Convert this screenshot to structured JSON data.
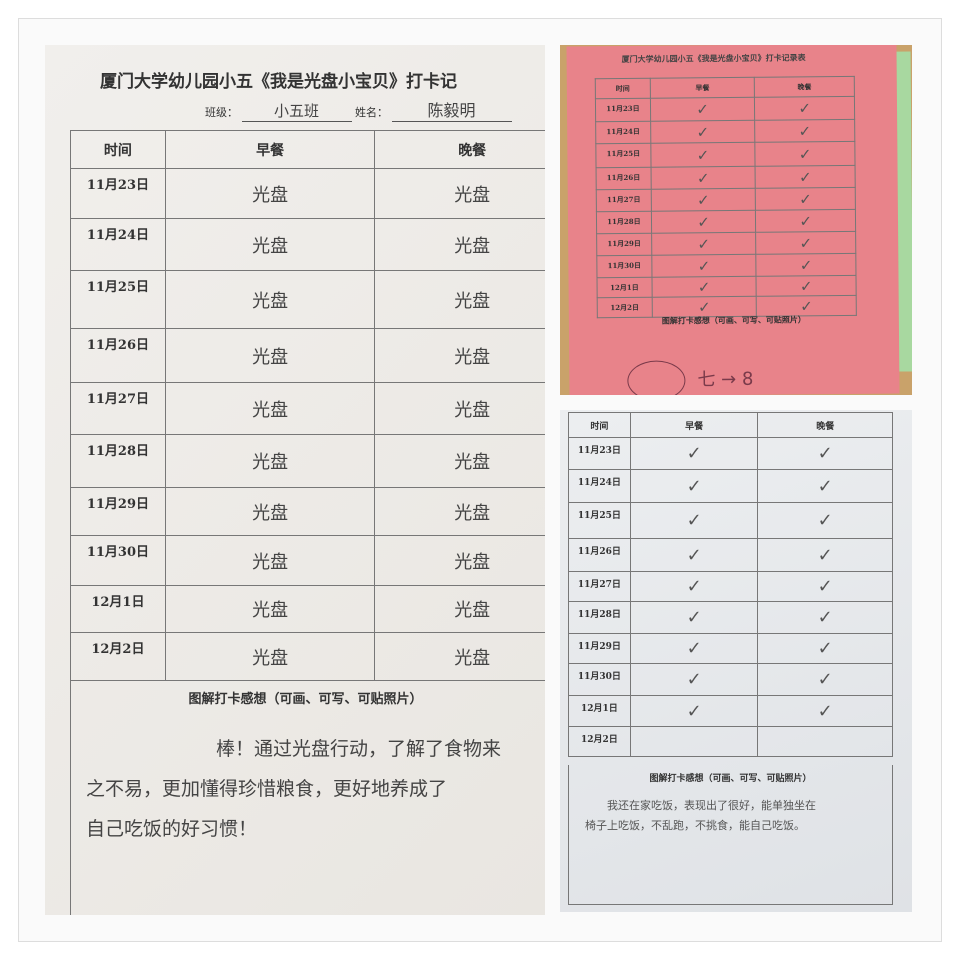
{
  "form": {
    "title": "厦门大学幼儿园小五《我是光盘小宝贝》打卡记录表",
    "title_cropped": "厦门大学幼儿园小五《我是光盘小宝贝》打卡记",
    "class_label": "班级：",
    "name_label": "姓名：",
    "col_time": "时间",
    "col_breakfast": "早餐",
    "col_dinner": "晚餐",
    "feedback_label": "图解打卡感想（可画、可写、可贴照片）"
  },
  "sheet1": {
    "class_value": "小五班",
    "name_value": "陈毅明",
    "rows": [
      {
        "date": "11月23日",
        "breakfast": "光盘",
        "dinner": "光盘"
      },
      {
        "date": "11月24日",
        "breakfast": "光盘",
        "dinner": "光盘"
      },
      {
        "date": "11月25日",
        "breakfast": "光盘",
        "dinner": "光盘"
      },
      {
        "date": "11月26日",
        "breakfast": "光盘",
        "dinner": "光盘"
      },
      {
        "date": "11月27日",
        "breakfast": "光盘",
        "dinner": "光盘"
      },
      {
        "date": "11月28日",
        "breakfast": "光盘",
        "dinner": "光盘"
      },
      {
        "date": "11月29日",
        "breakfast": "光盘",
        "dinner": "光盘"
      },
      {
        "date": "11月30日",
        "breakfast": "光盘",
        "dinner": "光盘"
      },
      {
        "date": "12月1日",
        "breakfast": "光盘",
        "dinner": "光盘"
      },
      {
        "date": "12月2日",
        "breakfast": "光盘",
        "dinner": "光盘"
      }
    ],
    "feedback": [
      "棒！通过光盘行动，了解了食物来",
      "之不易，更加懂得珍惜粮食，更好地养成了",
      "自己吃饭的好习惯！"
    ]
  },
  "sheet2": {
    "rows": [
      {
        "date": "11月23日",
        "breakfast": "✓",
        "dinner": "✓"
      },
      {
        "date": "11月24日",
        "breakfast": "✓",
        "dinner": "✓"
      },
      {
        "date": "11月25日",
        "breakfast": "✓",
        "dinner": "✓"
      },
      {
        "date": "11月26日",
        "breakfast": "✓",
        "dinner": "✓"
      },
      {
        "date": "11月27日",
        "breakfast": "✓",
        "dinner": "✓"
      },
      {
        "date": "11月28日",
        "breakfast": "✓",
        "dinner": "✓"
      },
      {
        "date": "11月29日",
        "breakfast": "✓",
        "dinner": "✓"
      },
      {
        "date": "11月30日",
        "breakfast": "✓",
        "dinner": "✓"
      },
      {
        "date": "12月1日",
        "breakfast": "✓",
        "dinner": "✓"
      },
      {
        "date": "12月2日",
        "breakfast": "✓",
        "dinner": "✓"
      }
    ],
    "drawing": "七 → 8"
  },
  "sheet3": {
    "rows": [
      {
        "date": "11月23日",
        "breakfast": "✓",
        "dinner": "✓"
      },
      {
        "date": "11月24日",
        "breakfast": "✓",
        "dinner": "✓"
      },
      {
        "date": "11月25日",
        "breakfast": "✓",
        "dinner": "✓"
      },
      {
        "date": "11月26日",
        "breakfast": "✓",
        "dinner": "✓"
      },
      {
        "date": "11月27日",
        "breakfast": "✓",
        "dinner": "✓"
      },
      {
        "date": "11月28日",
        "breakfast": "✓",
        "dinner": "✓"
      },
      {
        "date": "11月29日",
        "breakfast": "✓",
        "dinner": "✓"
      },
      {
        "date": "11月30日",
        "breakfast": "✓",
        "dinner": "✓"
      },
      {
        "date": "12月1日",
        "breakfast": "✓",
        "dinner": "✓"
      },
      {
        "date": "12月2日",
        "breakfast": "",
        "dinner": ""
      }
    ],
    "feedback": [
      "我还在家吃饭，表现出了很好，能单独坐在",
      "椅子上吃饭，不乱跑，不挑食，能自己吃饭。"
    ]
  },
  "colors": {
    "pink_paper": "#e8838a",
    "white_paper": "#eeece8",
    "grey_paper": "#e4e7ea"
  }
}
